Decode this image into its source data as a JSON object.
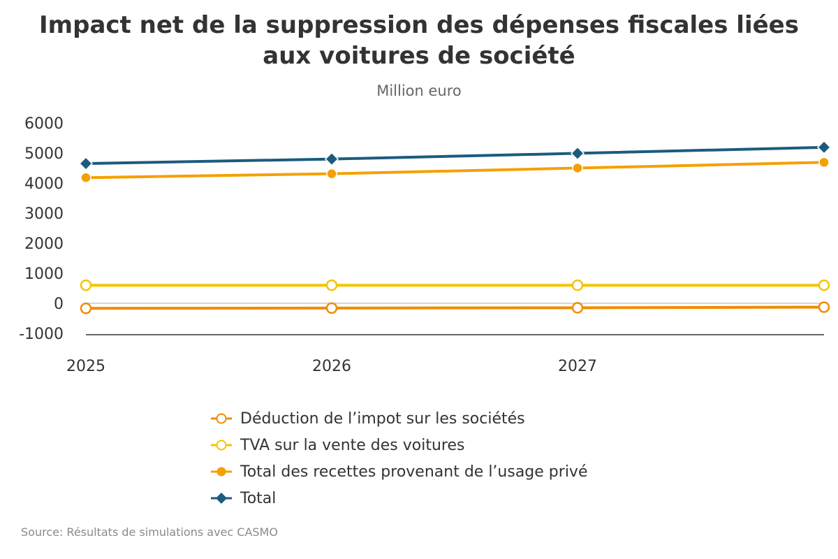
{
  "chart_data": {
    "type": "line",
    "title_lines": [
      "Impact net de la suppression des dépenses fiscales liées",
      "aux voitures de société"
    ],
    "subtitle": "Million euro",
    "xlabel": "",
    "ylabel": "",
    "categories": [
      "2025",
      "2026",
      "2027",
      ""
    ],
    "y_ticks": [
      "6000",
      "5000",
      "4000",
      "3000",
      "2000",
      "1000",
      "0",
      "-1000"
    ],
    "ylim": [
      -1000,
      6000
    ],
    "grid": false,
    "legend_position": "bottom",
    "series": [
      {
        "name": "Déduction de l’impot sur les sociétés",
        "values": [
          -170,
          -160,
          -150,
          -130
        ],
        "color": "#f08c00",
        "marker": "hollow-circle"
      },
      {
        "name": "TVA sur la vente des voitures",
        "values": [
          600,
          600,
          600,
          600
        ],
        "color": "#f5c400",
        "marker": "hollow-circle"
      },
      {
        "name": "Total des recettes provenant de l’usage privé",
        "values": [
          4180,
          4310,
          4500,
          4690
        ],
        "color": "#f5a000",
        "marker": "filled-circle"
      },
      {
        "name": "Total",
        "values": [
          4650,
          4800,
          4990,
          5190
        ],
        "color": "#1c5b7e",
        "marker": "diamond"
      }
    ]
  },
  "source": "Source: Résultats de simulations avec CASMO"
}
